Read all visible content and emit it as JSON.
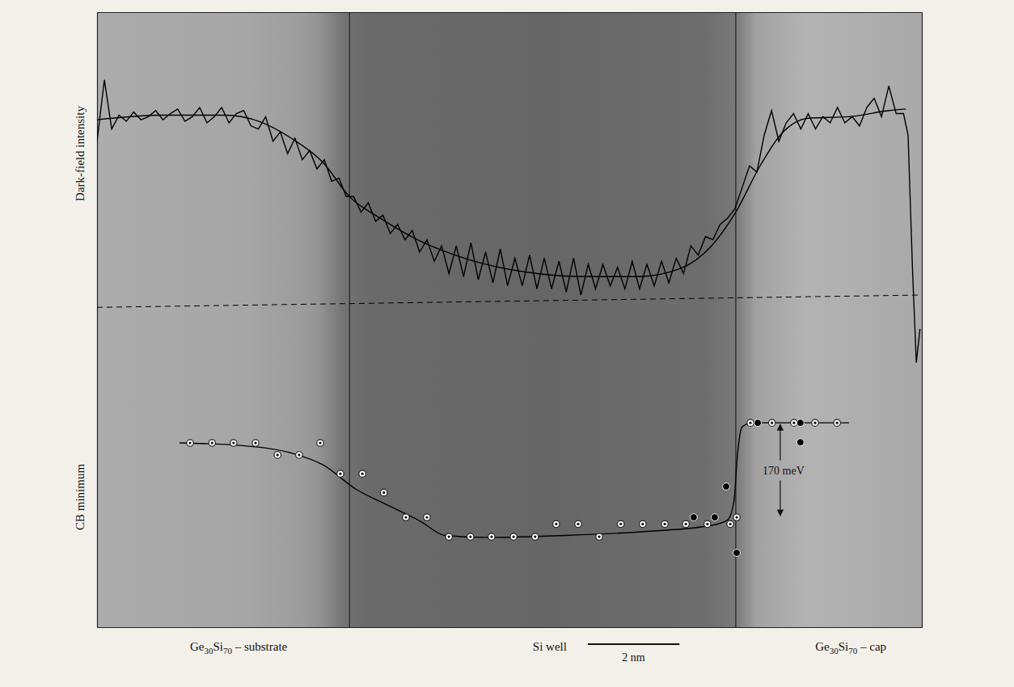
{
  "chart_data": {
    "type": "line",
    "y_label": "Dark-field intensity",
    "y2_label": "CB minimum",
    "tick_labels": false,
    "grid": false,
    "xlim": [
      0,
      18
    ],
    "ylim": [
      -100,
      100
    ],
    "y2lim": [
      -135,
      783
    ],
    "interfaces": [
      5.51,
      13.94
    ],
    "series": [
      {
        "type": "line",
        "color": "#000000",
        "line_style": "solid",
        "x": [
          0,
          0.16,
          0.32,
          0.48,
          0.64,
          0.8,
          0.96,
          1.12,
          1.28,
          1.44,
          1.6,
          1.76,
          1.92,
          2.08,
          2.24,
          2.4,
          2.56,
          2.72,
          2.88,
          3.04,
          3.2,
          3.36,
          3.52,
          3.68,
          3.84,
          4,
          4.16,
          4.32,
          4.48,
          4.64,
          4.8,
          4.96,
          5.12,
          5.28,
          5.44,
          5.6,
          5.76,
          5.92,
          6.08,
          6.24,
          6.4,
          6.56,
          6.72,
          6.88,
          7.04,
          7.2,
          7.36,
          7.52,
          7.68,
          7.84,
          8,
          8.16,
          8.32,
          8.48,
          8.64,
          8.8,
          8.96,
          9.12,
          9.28,
          9.44,
          9.6,
          9.76,
          9.92,
          10.08,
          10.24,
          10.4,
          10.56,
          10.72,
          10.88,
          11.04,
          11.2,
          11.36,
          11.52,
          11.68,
          11.84,
          12,
          12.16,
          12.32,
          12.48,
          12.64,
          12.8,
          12.96,
          13.12,
          13.28,
          13.44,
          13.6,
          13.76,
          13.92,
          14.08,
          14.24,
          14.4,
          14.56,
          14.72,
          14.88,
          15.04,
          15.2,
          15.36,
          15.52,
          15.68,
          15.84,
          16,
          16.16,
          16.32,
          16.48,
          16.64,
          16.8,
          16.96,
          17.12,
          17.28,
          17.44,
          17.6,
          17.7,
          17.8,
          17.88,
          17.96
        ],
        "values": [
          58,
          78,
          62,
          66.5,
          64.5,
          67.5,
          65,
          66,
          68,
          65,
          67,
          68.5,
          64.5,
          66,
          69,
          64,
          66,
          69,
          64,
          67,
          68,
          63,
          62,
          66,
          58,
          61,
          54,
          59,
          52,
          55,
          49,
          52,
          45,
          46,
          40,
          40,
          35,
          38,
          32,
          34,
          28,
          31,
          26,
          29,
          22,
          26,
          19,
          24,
          15,
          24,
          14,
          25,
          13,
          22,
          12,
          23,
          11,
          20,
          11,
          21,
          10,
          20,
          10,
          19,
          9,
          20,
          8,
          18,
          10,
          18,
          11,
          17,
          10,
          19,
          10,
          18,
          11,
          19,
          12,
          20,
          15,
          24,
          21,
          27,
          26,
          31,
          33,
          36,
          43,
          50,
          48,
          60,
          68,
          58,
          64,
          67,
          62,
          67,
          62,
          66,
          64,
          69,
          64,
          66,
          63,
          69,
          72,
          66,
          76,
          67,
          67,
          60,
          15,
          -14,
          -3
        ]
      },
      {
        "type": "line",
        "color": "#000000",
        "line_style": "solid",
        "x": [
          0,
          1.41,
          2.82,
          3.53,
          4.24,
          4.94,
          5.51,
          6.18,
          7.06,
          8.12,
          9.35,
          10.59,
          11.82,
          12.71,
          13.41,
          13.94,
          14.47,
          14.91,
          15.53,
          16.41,
          17.29,
          17.65
        ],
        "values": [
          65,
          66.5,
          66.5,
          64.5,
          59,
          51,
          40,
          33,
          25.5,
          19.5,
          15.5,
          14,
          14,
          16.5,
          24,
          35,
          50,
          60,
          65.5,
          66,
          68,
          68.5
        ]
      },
      {
        "type": "line",
        "color": "#000000",
        "line_style": "dashed",
        "x": [
          0,
          17.96
        ],
        "values": [
          4,
          8
        ]
      },
      {
        "type": "line",
        "color": "#000000",
        "line_style": "solid",
        "axis": "y2",
        "x": [
          1.8,
          3.18,
          4.24,
          4.94,
          5.65,
          6.35,
          7.06,
          7.59,
          8.47,
          10.24,
          12,
          13.41,
          13.76,
          13.9,
          13.98,
          14.08,
          14.29,
          16.41
        ],
        "values": [
          140,
          136,
          125,
          107,
          71,
          47,
          23,
          2,
          -1,
          2,
          8,
          17,
          25,
          53,
          125,
          164,
          170,
          170
        ]
      },
      {
        "type": "scatter",
        "color": "#ffffff",
        "marker": "open",
        "axis": "y2",
        "x": [
          2.03,
          2.51,
          2.98,
          3.46,
          3.94,
          4.41,
          4.87,
          5.31,
          5.79,
          6.26,
          6.74,
          7.2,
          7.68,
          8.15,
          8.61,
          9.09,
          9.56,
          10.02,
          10.5,
          10.96,
          11.43,
          11.91,
          12.39,
          12.85,
          13.32,
          13.82,
          13.96,
          14.26,
          14.73,
          15.21,
          15.67,
          16.15
        ],
        "values": [
          140,
          140,
          140,
          140,
          122,
          122,
          140,
          94,
          94,
          66,
          29,
          29,
          0,
          0,
          0,
          0,
          0,
          19,
          19,
          0,
          19,
          19,
          19,
          19,
          19,
          19,
          29,
          170,
          170,
          170,
          170,
          170
        ]
      },
      {
        "type": "scatter",
        "color": "#000000",
        "marker": "filled",
        "axis": "y2",
        "x": [
          13.02,
          13.48,
          13.73,
          13.96,
          14.42,
          15.35,
          15.35
        ],
        "values": [
          29,
          29,
          75,
          -24,
          170,
          170,
          141
        ]
      }
    ],
    "step_annotation": {
      "text": "170 meV",
      "x": 14.91,
      "y": [
        29,
        170
      ],
      "axis": "y2"
    },
    "region_labels": [
      {
        "text": "Ge30Si70 – substrate",
        "x": 3.09
      },
      {
        "text": "Si well",
        "x": 9.88
      },
      {
        "text": "Ge30Si70 – cap",
        "x": 16.45
      }
    ],
    "scale_bar": {
      "x": 10.71,
      "length": 2,
      "label": "2 nm"
    }
  }
}
